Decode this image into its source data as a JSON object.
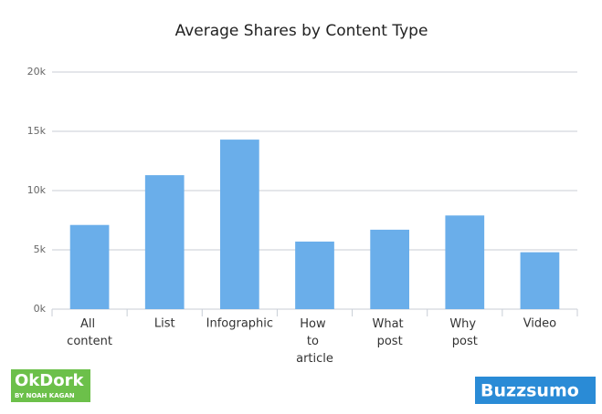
{
  "chart_data": {
    "type": "bar",
    "title": "Average Shares by Content Type",
    "categories": [
      "All content",
      "List",
      "Infographic",
      "How to article",
      "What post",
      "Why post",
      "Video"
    ],
    "values": [
      7100,
      11300,
      14300,
      5700,
      6700,
      7900,
      4800
    ],
    "color": "#6aaeea",
    "ylim": [
      0,
      20000
    ],
    "yticks": [
      {
        "value": 0,
        "label": "0k"
      },
      {
        "value": 5000,
        "label": "5k"
      },
      {
        "value": 10000,
        "label": "10k"
      },
      {
        "value": 15000,
        "label": "15k"
      },
      {
        "value": 20000,
        "label": "20k"
      }
    ],
    "grid": true
  },
  "logos": {
    "left": "OkDork",
    "left_sub": "BY NOAH KAGAN",
    "right": "Buzzsumo"
  }
}
